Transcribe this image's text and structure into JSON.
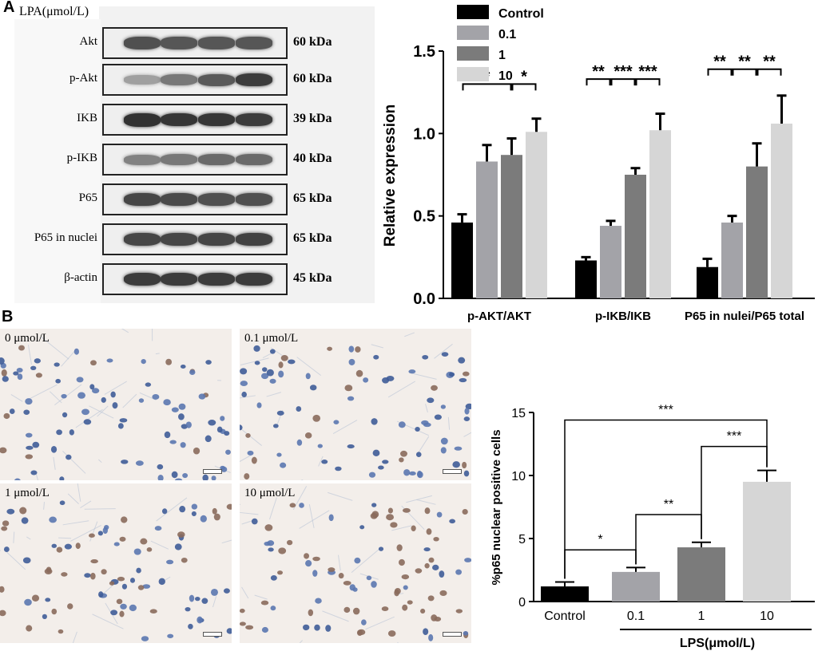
{
  "panel_a": {
    "letter": "A",
    "lpa_header": "LPA(μmol/L)",
    "concentrations": [
      "0",
      "0.1",
      "1",
      "10"
    ],
    "blots": [
      {
        "label": "Akt",
        "kda": "60 kDa",
        "intensity": [
          0.75,
          0.72,
          0.72,
          0.72
        ]
      },
      {
        "label": "p-Akt",
        "kda": "60 kDa",
        "intensity": [
          0.35,
          0.55,
          0.7,
          0.85
        ]
      },
      {
        "label": "IKB",
        "kda": "39 kDa",
        "intensity": [
          0.9,
          0.88,
          0.88,
          0.85
        ]
      },
      {
        "label": "p-IKB",
        "kda": "40 kDa",
        "intensity": [
          0.5,
          0.55,
          0.62,
          0.62
        ]
      },
      {
        "label": "P65",
        "kda": "65 kDa",
        "intensity": [
          0.8,
          0.78,
          0.75,
          0.75
        ]
      },
      {
        "label": "P65 in nuclei",
        "kda": "65 kDa",
        "intensity": [
          0.8,
          0.8,
          0.8,
          0.82
        ]
      },
      {
        "label": "β-actin",
        "kda": "45 kDa",
        "intensity": [
          0.85,
          0.85,
          0.85,
          0.85
        ]
      }
    ]
  },
  "panel_b": {
    "letter": "B",
    "micrographs": [
      {
        "label": "0 μmol/L",
        "brown_fraction": 0.08
      },
      {
        "label": "0.1 μmol/L",
        "brown_fraction": 0.2
      },
      {
        "label": "1 μmol/L",
        "brown_fraction": 0.4
      },
      {
        "label": "10 μmol/L",
        "brown_fraction": 0.6
      }
    ]
  },
  "chart_data": [
    {
      "type": "bar",
      "ylabel": "Relative expression",
      "ylim": [
        0,
        1.5
      ],
      "yticks": [
        "0.0",
        "0.5",
        "1.0",
        "1.5"
      ],
      "categories": [
        "p-AKT/AKT",
        "p-IKB/IKB",
        "P65 in nulei/P65 total"
      ],
      "legend_position": "top",
      "series": [
        {
          "name": "Control",
          "color": "#000000",
          "values": [
            0.46,
            0.23,
            0.19
          ],
          "errors": [
            0.05,
            0.02,
            0.05
          ]
        },
        {
          "name": "0.1",
          "color": "#a3a3a8",
          "values": [
            0.83,
            0.44,
            0.46
          ],
          "errors": [
            0.1,
            0.03,
            0.04
          ]
        },
        {
          "name": "1",
          "color": "#7b7b7b",
          "values": [
            0.87,
            0.75,
            0.8
          ],
          "errors": [
            0.1,
            0.04,
            0.14
          ]
        },
        {
          "name": "10",
          "color": "#d6d6d6",
          "values": [
            1.01,
            1.02,
            1.06
          ],
          "errors": [
            0.08,
            0.1,
            0.17
          ]
        }
      ],
      "significance": [
        {
          "group": 0,
          "from": 0,
          "to": 2,
          "label": "*"
        },
        {
          "group": 0,
          "from": 2,
          "to": 3,
          "label": "*"
        },
        {
          "group": 1,
          "from": 0,
          "to": 1,
          "label": "**"
        },
        {
          "group": 1,
          "from": 1,
          "to": 2,
          "label": "***"
        },
        {
          "group": 1,
          "from": 2,
          "to": 3,
          "label": "***"
        },
        {
          "group": 2,
          "from": 0,
          "to": 1,
          "label": "**"
        },
        {
          "group": 2,
          "from": 1,
          "to": 2,
          "label": "**"
        },
        {
          "group": 2,
          "from": 2,
          "to": 3,
          "label": "**"
        }
      ]
    },
    {
      "type": "bar",
      "ylabel": "%p65 nuclear positive cells",
      "xlabel": "LPS(μmol/L)",
      "ylim": [
        0,
        15
      ],
      "yticks": [
        "0",
        "5",
        "10",
        "15"
      ],
      "categories": [
        "Control",
        "0.1",
        "1",
        "10"
      ],
      "values": [
        1.2,
        2.35,
        4.3,
        9.5
      ],
      "errors": [
        0.35,
        0.35,
        0.4,
        0.9
      ],
      "colors": [
        "#000000",
        "#a3a3a8",
        "#7b7b7b",
        "#d6d6d6"
      ],
      "significance": [
        {
          "from": 0,
          "to": 1,
          "label": "*"
        },
        {
          "from": 1,
          "to": 2,
          "label": "**"
        },
        {
          "from": 2,
          "to": 3,
          "label": "***"
        },
        {
          "from": 0,
          "to": 3,
          "label": "***"
        }
      ]
    }
  ]
}
